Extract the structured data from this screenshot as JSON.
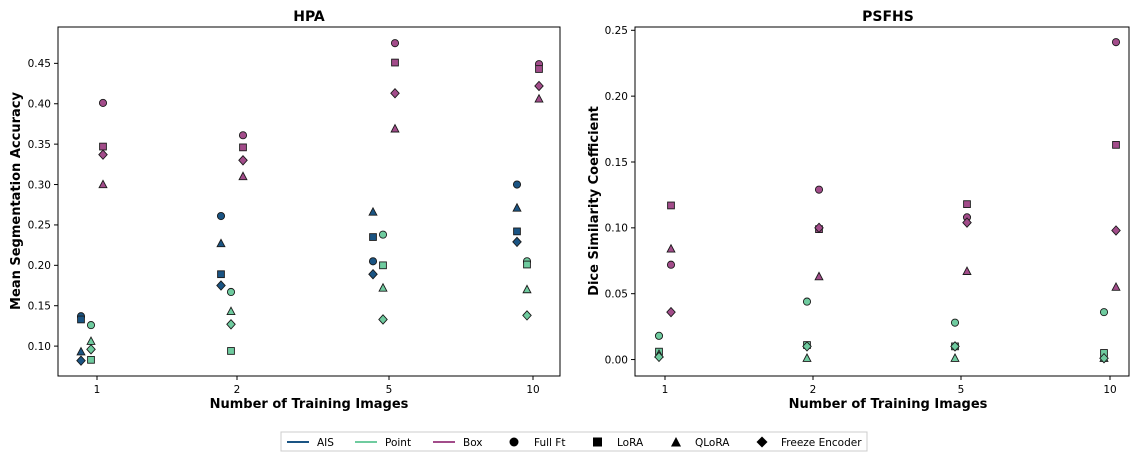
{
  "legend": {
    "entries": [
      {
        "label": "AIS",
        "kind": "line",
        "color": "#1a5483"
      },
      {
        "label": "Point",
        "kind": "line",
        "color": "#6fcb9f"
      },
      {
        "label": "Box",
        "kind": "line",
        "color": "#a24c8a"
      },
      {
        "label": "Full Ft",
        "kind": "marker",
        "shape": "circle"
      },
      {
        "label": "LoRA",
        "kind": "marker",
        "shape": "square"
      },
      {
        "label": "QLoRA",
        "kind": "marker",
        "shape": "triangle"
      },
      {
        "label": "Freeze Encoder",
        "kind": "marker",
        "shape": "diamond"
      }
    ]
  },
  "colors": {
    "AIS": "#1a5483",
    "Point": "#6fcb9f",
    "Box": "#a24c8a",
    "edge": "#1a1a1a"
  },
  "chart_data": [
    {
      "type": "scatter",
      "title": "HPA",
      "xlabel": "Number of Training Images",
      "ylabel": "Mean Segmentation Accuracy",
      "categories": [
        "1",
        "2",
        "5",
        "10"
      ],
      "ylim": [
        0.063,
        0.495
      ],
      "yticks": [
        "0.10",
        "0.15",
        "0.20",
        "0.25",
        "0.30",
        "0.35",
        "0.40",
        "0.45"
      ],
      "grid": false,
      "series": [
        {
          "name": "AIS — Full Ft",
          "prompt": "AIS",
          "method": "Full Ft",
          "shape": "circle",
          "values": [
            0.137,
            0.261,
            0.205,
            0.3
          ]
        },
        {
          "name": "AIS — LoRA",
          "prompt": "AIS",
          "method": "LoRA",
          "shape": "square",
          "values": [
            0.133,
            0.189,
            0.235,
            0.242
          ]
        },
        {
          "name": "AIS — QLoRA",
          "prompt": "AIS",
          "method": "QLoRA",
          "shape": "triangle",
          "values": [
            0.093,
            0.227,
            0.266,
            0.271
          ]
        },
        {
          "name": "AIS — Freeze Encoder",
          "prompt": "AIS",
          "method": "Freeze Encoder",
          "shape": "diamond",
          "values": [
            0.082,
            0.175,
            0.189,
            0.229
          ]
        },
        {
          "name": "Point — Full Ft",
          "prompt": "Point",
          "method": "Full Ft",
          "shape": "circle",
          "values": [
            0.126,
            0.167,
            0.238,
            0.205
          ]
        },
        {
          "name": "Point — LoRA",
          "prompt": "Point",
          "method": "LoRA",
          "shape": "square",
          "values": [
            0.083,
            0.094,
            0.2,
            0.201
          ]
        },
        {
          "name": "Point — QLoRA",
          "prompt": "Point",
          "method": "QLoRA",
          "shape": "triangle",
          "values": [
            0.106,
            0.143,
            0.172,
            0.17
          ]
        },
        {
          "name": "Point — Freeze Encoder",
          "prompt": "Point",
          "method": "Freeze Encoder",
          "shape": "diamond",
          "values": [
            0.096,
            0.127,
            0.133,
            0.138
          ]
        },
        {
          "name": "Box — Full Ft",
          "prompt": "Box",
          "method": "Full Ft",
          "shape": "circle",
          "values": [
            0.401,
            0.361,
            0.475,
            0.449
          ]
        },
        {
          "name": "Box — LoRA",
          "prompt": "Box",
          "method": "LoRA",
          "shape": "square",
          "values": [
            0.347,
            0.346,
            0.451,
            0.443
          ]
        },
        {
          "name": "Box — QLoRA",
          "prompt": "Box",
          "method": "QLoRA",
          "shape": "triangle",
          "values": [
            0.3,
            0.31,
            0.369,
            0.406
          ]
        },
        {
          "name": "Box — Freeze Encoder",
          "prompt": "Box",
          "method": "Freeze Encoder",
          "shape": "diamond",
          "values": [
            0.337,
            0.33,
            0.413,
            0.422
          ]
        }
      ]
    },
    {
      "type": "scatter",
      "title": "PSFHS",
      "xlabel": "Number of Training Images",
      "ylabel": "Dice Similarity Coefficient",
      "categories": [
        "1",
        "2",
        "5",
        "10"
      ],
      "ylim": [
        -0.0125,
        0.2525
      ],
      "yticks": [
        "0.00",
        "0.05",
        "0.10",
        "0.15",
        "0.20",
        "0.25"
      ],
      "grid": false,
      "series": [
        {
          "name": "Point — Full Ft",
          "prompt": "Point",
          "method": "Full Ft",
          "shape": "circle",
          "values": [
            0.018,
            0.044,
            0.028,
            0.036
          ]
        },
        {
          "name": "Point — LoRA",
          "prompt": "Point",
          "method": "LoRA",
          "shape": "square",
          "values": [
            0.006,
            0.011,
            0.01,
            0.005
          ]
        },
        {
          "name": "Point — QLoRA",
          "prompt": "Point",
          "method": "QLoRA",
          "shape": "triangle",
          "values": [
            0.004,
            0.001,
            0.001,
            0.001
          ]
        },
        {
          "name": "Point — Freeze Encoder",
          "prompt": "Point",
          "method": "Freeze Encoder",
          "shape": "diamond",
          "values": [
            0.002,
            0.01,
            0.01,
            0.001
          ]
        },
        {
          "name": "Box — Full Ft",
          "prompt": "Box",
          "method": "Full Ft",
          "shape": "circle",
          "values": [
            0.072,
            0.129,
            0.108,
            0.241
          ]
        },
        {
          "name": "Box — LoRA",
          "prompt": "Box",
          "method": "LoRA",
          "shape": "square",
          "values": [
            0.117,
            0.099,
            0.118,
            0.163
          ]
        },
        {
          "name": "Box — QLoRA",
          "prompt": "Box",
          "method": "QLoRA",
          "shape": "triangle",
          "values": [
            0.084,
            0.063,
            0.067,
            0.055
          ]
        },
        {
          "name": "Box — Freeze Encoder",
          "prompt": "Box",
          "method": "Freeze Encoder",
          "shape": "diamond",
          "values": [
            0.036,
            0.1,
            0.104,
            0.098
          ]
        }
      ]
    }
  ]
}
